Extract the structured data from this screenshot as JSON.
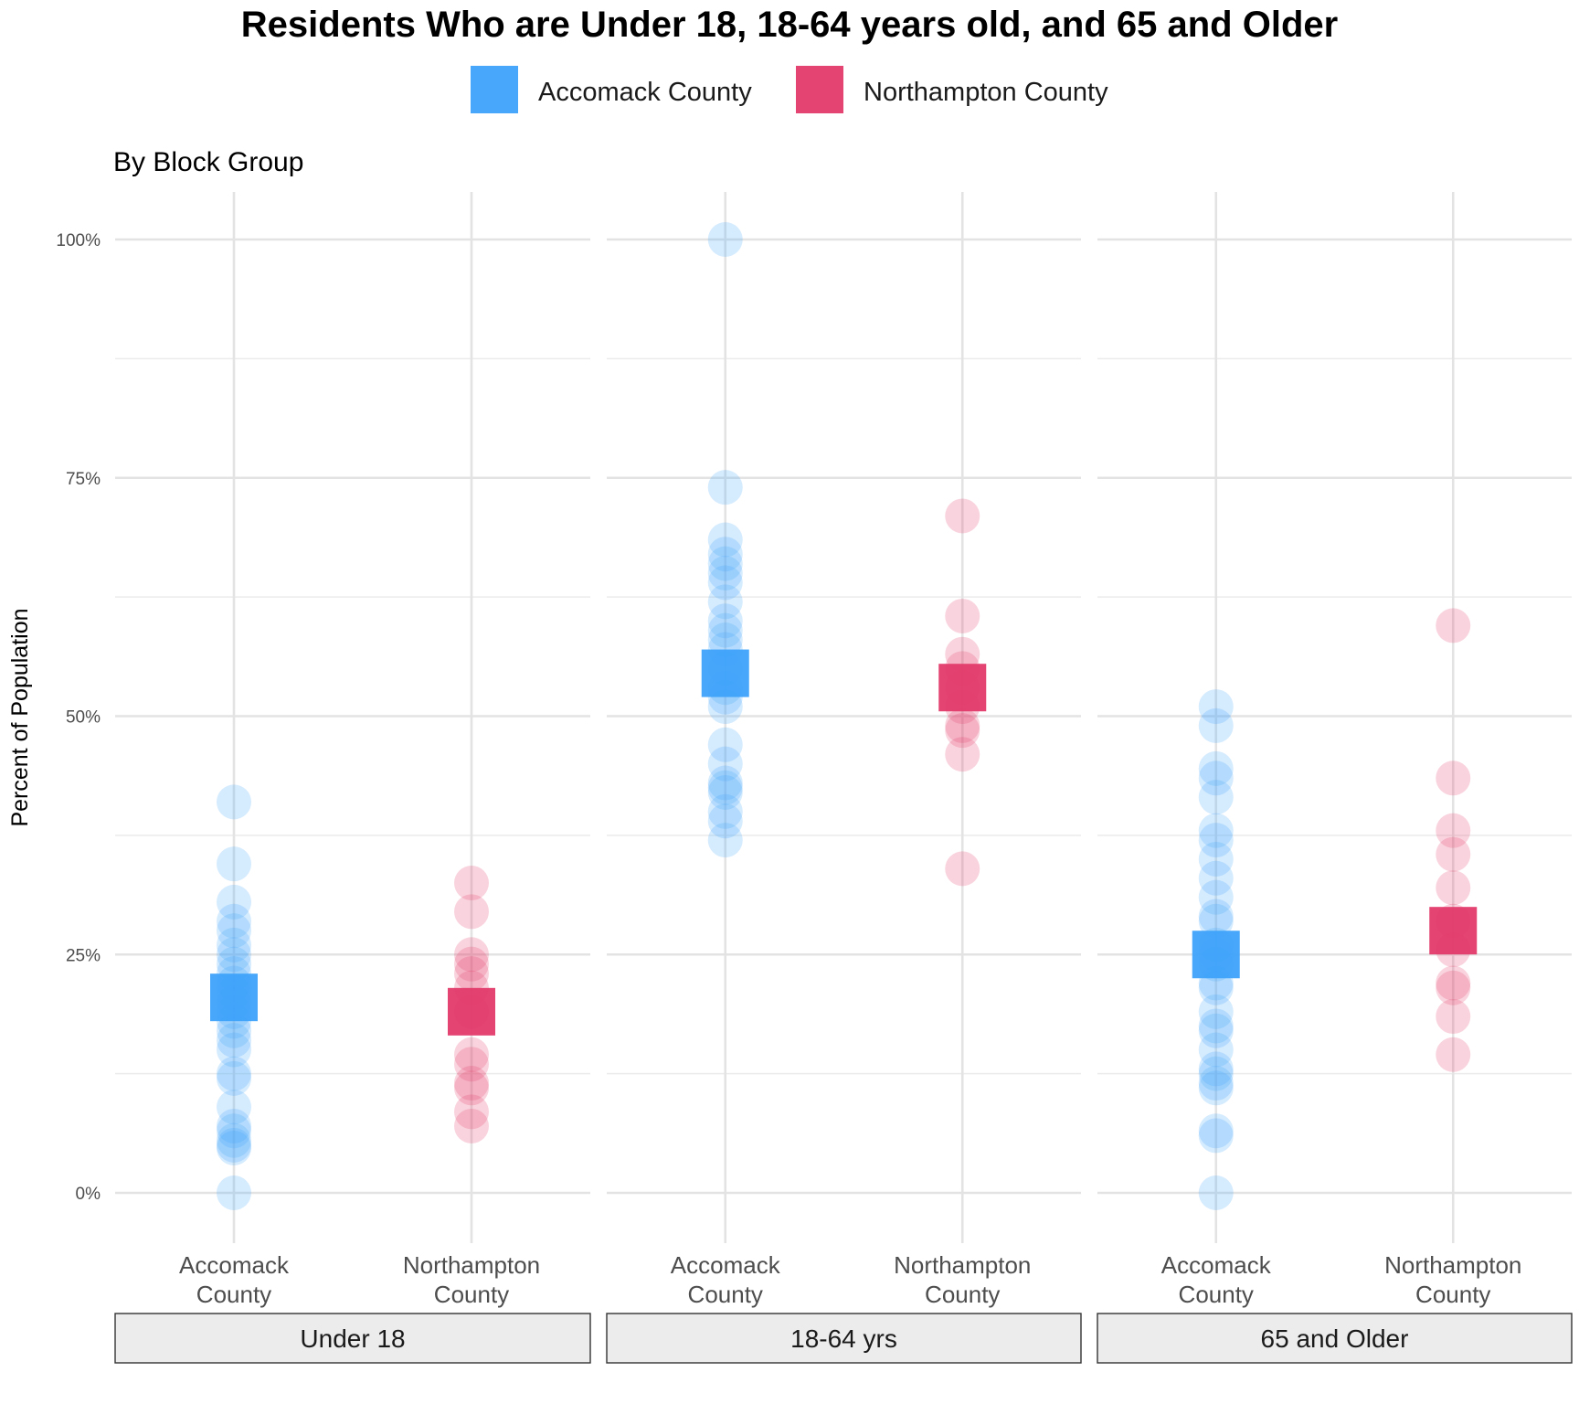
{
  "chart_data": {
    "type": "scatter",
    "title": "Residents Who are Under 18, 18-64 years old, and 65 and Older",
    "subtitle": "By Block Group",
    "ylabel": "Percent of Population",
    "xlabel": "",
    "ylim": [
      -5,
      105
    ],
    "y_ticks": [
      0,
      25,
      50,
      75,
      100
    ],
    "y_tick_labels": [
      "0%",
      "25%",
      "50%",
      "75%",
      "100%"
    ],
    "categories": [
      "Accomack County",
      "Northampton County"
    ],
    "category_tick_labels": [
      [
        "Accomack",
        "County"
      ],
      [
        "Northampton",
        "County"
      ]
    ],
    "legend_position": "top",
    "grid": true,
    "series": [
      {
        "name": "Accomack County",
        "color": "#3ea2fa"
      },
      {
        "name": "Northampton County",
        "color": "#e23a6a"
      }
    ],
    "panels": [
      {
        "label": "Under 18",
        "points": {
          "Accomack County": [
            0,
            4.7,
            5,
            5.5,
            6.5,
            7,
            9,
            12,
            12.5,
            15,
            16,
            17,
            18,
            19,
            20,
            21,
            22,
            23,
            24,
            25,
            26,
            27.5,
            28.5,
            30.5,
            34.5,
            41
          ],
          "Northampton County": [
            7,
            8.5,
            11,
            11.5,
            13.5,
            14.5,
            19,
            21.5,
            23,
            24,
            25,
            29.5,
            32.5
          ]
        },
        "means": {
          "Accomack County": 20.5,
          "Northampton County": 19
        }
      },
      {
        "label": "18-64 yrs",
        "points": {
          "Accomack County": [
            37,
            39,
            40,
            42,
            42.5,
            43,
            45,
            47,
            51,
            52,
            53,
            55,
            57,
            58,
            59,
            60,
            62,
            64,
            65,
            66,
            67,
            68.5,
            74,
            100
          ],
          "Northampton County": [
            34,
            46,
            48.5,
            49,
            51,
            53,
            55,
            56.5,
            60.5,
            71
          ]
        },
        "means": {
          "Accomack County": 54.5,
          "Northampton County": 53
        }
      },
      {
        "label": "65 and Older",
        "points": {
          "Accomack County": [
            0,
            6,
            6.5,
            11,
            11.5,
            12.5,
            13,
            15,
            17,
            17.5,
            19,
            21.5,
            22,
            24,
            25,
            26,
            28.5,
            29,
            31,
            33,
            35,
            37,
            38,
            41.5,
            43.5,
            44.5,
            49,
            51
          ],
          "Northampton County": [
            14.5,
            18.5,
            21.5,
            22,
            25.5,
            28.5,
            32,
            35.5,
            38,
            43.5,
            59.5
          ]
        },
        "means": {
          "Accomack County": 25,
          "Northampton County": 27.5
        }
      }
    ]
  }
}
